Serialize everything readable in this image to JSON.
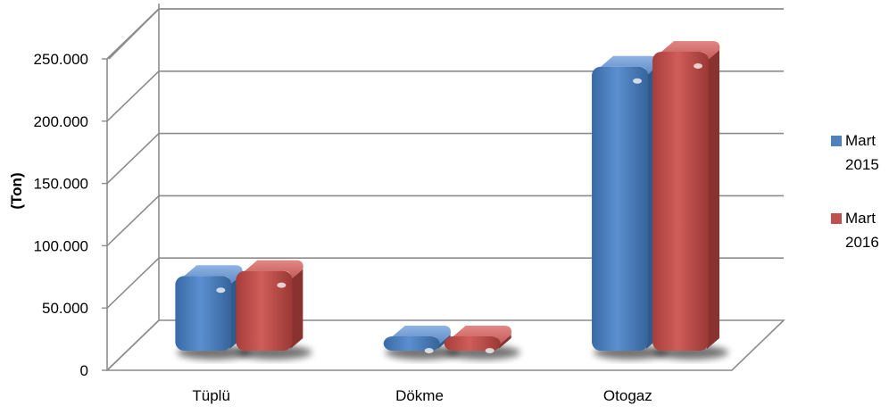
{
  "chart_data": {
    "type": "bar",
    "title": "",
    "xlabel": "",
    "ylabel": "(Ton)",
    "categories": [
      "Tüplü",
      "Dökme",
      "Otogaz"
    ],
    "series": [
      {
        "name": "Mart 2015",
        "color": "#4f81bd",
        "values": [
          60000,
          5000,
          228000
        ]
      },
      {
        "name": "Mart 2016",
        "color": "#c0504d",
        "values": [
          64000,
          5000,
          240000
        ]
      }
    ],
    "ylim": [
      0,
      250000
    ],
    "yticks": [
      "0",
      "50.000",
      "100.000",
      "150.000",
      "200.000",
      "250.000"
    ],
    "ytick_values": [
      0,
      50000,
      100000,
      150000,
      200000,
      250000
    ],
    "grid": true,
    "legend": {
      "placement": "right",
      "entries": [
        {
          "line1": "Mart",
          "line2": "2015"
        },
        {
          "line1": "Mart",
          "line2": "2016"
        }
      ]
    }
  }
}
